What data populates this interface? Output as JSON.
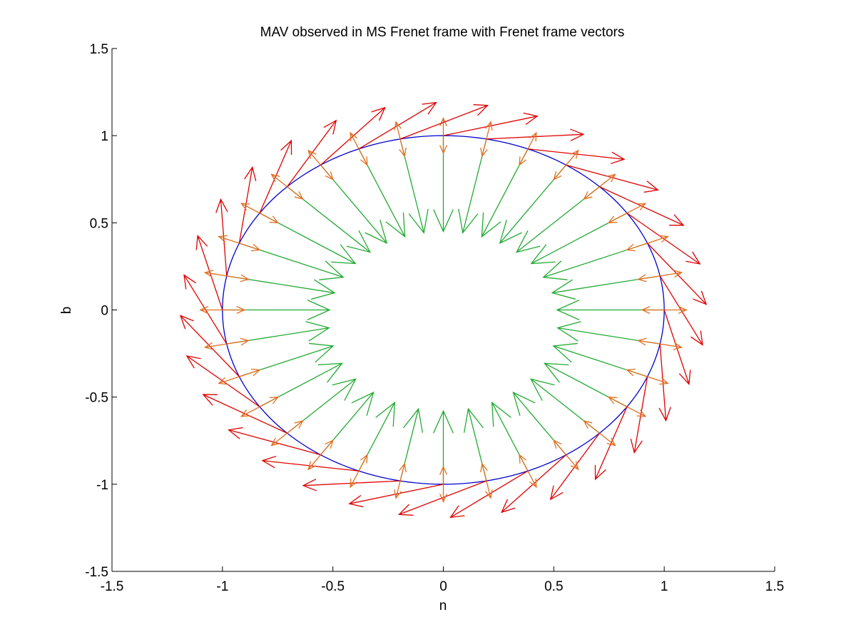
{
  "chart_data": {
    "type": "quiver",
    "title": "MAV observed in MS Frenet frame with Frenet frame vectors",
    "xlabel": "n",
    "ylabel": "b",
    "xlim": [
      -1.5,
      1.5
    ],
    "ylim": [
      -1.5,
      1.5
    ],
    "xticks": [
      -1.5,
      -1,
      -0.5,
      0,
      0.5,
      1,
      1.5
    ],
    "yticks": [
      -1.5,
      -1,
      -0.5,
      0,
      0.5,
      1,
      1.5
    ],
    "xtick_labels": [
      "-1.5",
      "-1",
      "-0.5",
      "0",
      "0.5",
      "1",
      "1.5"
    ],
    "ytick_labels": [
      "-1.5",
      "-1",
      "-0.5",
      "0",
      "0.5",
      "1",
      "1.5"
    ],
    "grid": false,
    "legend": "none",
    "curve": {
      "shape": "ellipse",
      "center": [
        0,
        0
      ],
      "semi_axis_n": 1.0,
      "semi_axis_b": 1.0,
      "color": "#0000cc"
    },
    "vector_fields": {
      "count": 32,
      "tangent": {
        "color": "#e00000",
        "length": 0.44
      },
      "normal": {
        "color": "#22aa33",
        "length_min": 0.42,
        "length_max": 0.55
      },
      "binormal": {
        "color": "#e07020",
        "length": 0.2
      }
    }
  }
}
